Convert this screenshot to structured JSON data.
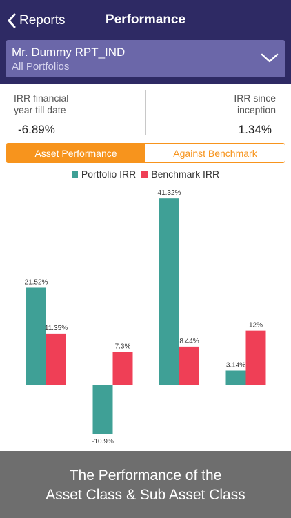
{
  "header": {
    "back_label": "Reports",
    "title": "Performance"
  },
  "selector": {
    "name": "Mr. Dummy RPT_IND",
    "subtitle": "All Portfolios"
  },
  "irr": {
    "left_label_line1": "IRR financial",
    "left_label_line2": "year till date",
    "left_value": "-6.89%",
    "right_label_line1": "IRR since",
    "right_label_line2": "inception",
    "right_value": "1.34%"
  },
  "tabs": {
    "active": "Asset Performance",
    "inactive": "Against Benchmark"
  },
  "colors": {
    "portfolio": "#3fa096",
    "benchmark": "#ef3f56",
    "accent": "#f7941d",
    "header": "#2e2a64"
  },
  "chart_data": {
    "type": "bar",
    "categories": [
      "",
      "",
      "",
      ""
    ],
    "series": [
      {
        "name": "Portfolio IRR",
        "values": [
          21.52,
          -10.9,
          41.32,
          3.14
        ],
        "labels": [
          "21.52%",
          "-10.9%",
          "41.32%",
          "3.14%"
        ]
      },
      {
        "name": "Benchmark IRR",
        "values": [
          11.35,
          7.3,
          8.44,
          12
        ],
        "labels": [
          "11.35%",
          "7.3%",
          "8.44%",
          "12%"
        ]
      }
    ],
    "title": "",
    "xlabel": "",
    "ylabel": ""
  },
  "banner": {
    "line1": "The Performance of the",
    "line2": "Asset Class & Sub Asset Class"
  }
}
